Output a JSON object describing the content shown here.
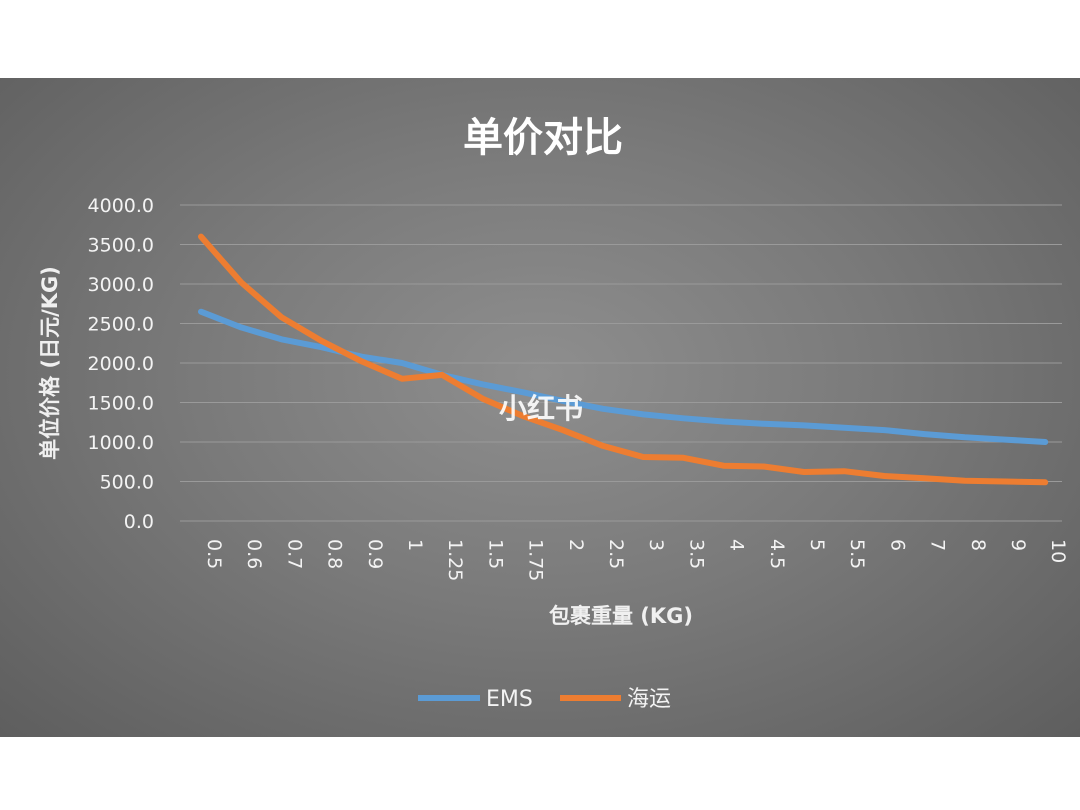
{
  "chart_data": {
    "type": "line",
    "title": "单价对比",
    "ylabel": "单位价格 (日元/KG)",
    "xlabel": "包裹重量 (KG)",
    "ylim": [
      0,
      4000
    ],
    "yticks": [
      "0.0",
      "500.0",
      "1000.0",
      "1500.0",
      "2000.0",
      "2500.0",
      "3000.0",
      "3500.0",
      "4000.0"
    ],
    "categories": [
      "0.5",
      "0.6",
      "0.7",
      "0.8",
      "0.9",
      "1",
      "1.25",
      "1.5",
      "1.75",
      "2",
      "2.5",
      "3",
      "3.5",
      "4",
      "4.5",
      "5",
      "5.5",
      "6",
      "7",
      "8",
      "9",
      "10"
    ],
    "grid": true,
    "legend_position": "bottom",
    "series": [
      {
        "name": "EMS",
        "color": "#5b9bd5",
        "values": [
          2650,
          2450,
          2300,
          2200,
          2080,
          2000,
          1850,
          1730,
          1630,
          1520,
          1420,
          1350,
          1300,
          1260,
          1230,
          1210,
          1180,
          1150,
          1100,
          1060,
          1030,
          1000
        ]
      },
      {
        "name": "海运",
        "color": "#ed7d31",
        "values": [
          3600,
          3020,
          2580,
          2280,
          2020,
          1800,
          1850,
          1550,
          1330,
          1150,
          950,
          810,
          800,
          700,
          690,
          620,
          630,
          570,
          540,
          510,
          500,
          490
        ]
      }
    ]
  },
  "watermark": "小红书"
}
